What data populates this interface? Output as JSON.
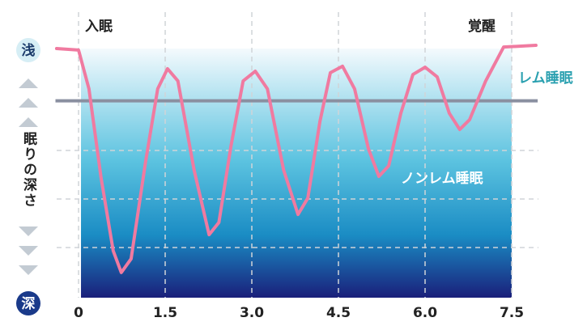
{
  "chart_data": {
    "type": "line",
    "x_annotations": {
      "sleep_onset": "入眠",
      "awakening": "覚醒"
    },
    "depth_labels": {
      "shallow": "浅",
      "deep": "深"
    },
    "ylabel": "眠りの深さ",
    "reference_line": {
      "label": "レム睡眠",
      "value": 21,
      "color": "#8a8fa0"
    },
    "region_label": "ノンレム睡眠",
    "xlim": [
      -0.4,
      7.95
    ],
    "ylim": [
      100,
      0
    ],
    "xticks": [
      0,
      1.5,
      {
        "value": 3,
        "label": "3.0"
      },
      4.5,
      {
        "value": 6,
        "label": "6.0"
      },
      7.5
    ],
    "grid": true,
    "series": [
      {
        "color": "#f07aa0",
        "x": [
          -0.38,
          0,
          0.18,
          0.39,
          0.6,
          0.74,
          0.91,
          1.16,
          1.37,
          1.54,
          1.72,
          2.0,
          2.26,
          2.43,
          2.64,
          2.85,
          3.06,
          3.27,
          3.55,
          3.8,
          3.97,
          4.18,
          4.36,
          4.57,
          4.78,
          5.02,
          5.2,
          5.37,
          5.58,
          5.79,
          6.0,
          6.21,
          6.42,
          6.6,
          6.77,
          7.05,
          7.36,
          7.92
        ],
        "values": [
          0,
          0.6,
          16.2,
          51.9,
          81.2,
          89.9,
          84.4,
          45.5,
          16.2,
          8.1,
          13,
          48.7,
          74.7,
          69.8,
          39,
          13,
          9.1,
          16.2,
          48.7,
          66.6,
          60,
          29.2,
          9.7,
          7.1,
          16.2,
          40.3,
          51.3,
          47.1,
          26,
          10.4,
          7.5,
          11.4,
          26,
          32.5,
          28.6,
          13,
          -0.6,
          -1.3
        ]
      }
    ]
  }
}
